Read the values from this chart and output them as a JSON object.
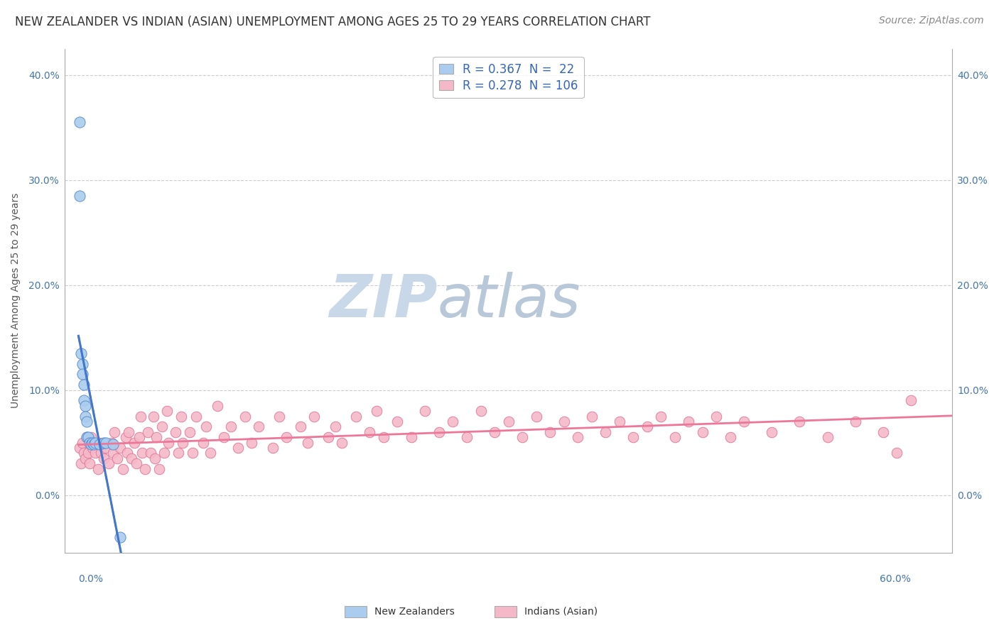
{
  "title": "NEW ZEALANDER VS INDIAN (ASIAN) UNEMPLOYMENT AMONG AGES 25 TO 29 YEARS CORRELATION CHART",
  "source": "Source: ZipAtlas.com",
  "ylabel": "Unemployment Among Ages 25 to 29 years",
  "yticks": [
    "0.0%",
    "10.0%",
    "20.0%",
    "30.0%",
    "40.0%"
  ],
  "ytick_vals": [
    0.0,
    0.1,
    0.2,
    0.3,
    0.4
  ],
  "xlim": [
    -0.01,
    0.63
  ],
  "ylim": [
    -0.055,
    0.425
  ],
  "legend_nz": "R = 0.367  N =  22",
  "legend_ind": "R = 0.278  N = 106",
  "legend_label_nz": "New Zealanders",
  "legend_label_ind": "Indians (Asian)",
  "nz_color": "#aaccee",
  "nz_edge_color": "#5588cc",
  "ind_color": "#f5b8c8",
  "ind_edge_color": "#dd7799",
  "nz_line_color": "#4477cc",
  "ind_line_color": "#ee7799",
  "watermark_zip": "ZIP",
  "watermark_atlas": "atlas",
  "watermark_color_zip": "#c8d8e8",
  "watermark_color_atlas": "#b8c8d8",
  "title_fontsize": 12,
  "source_fontsize": 10,
  "axis_label_fontsize": 10,
  "tick_fontsize": 10,
  "legend_fontsize": 12,
  "watermark_fontsize": 60,
  "R_nz": 0.367,
  "N_nz": 22,
  "R_ind": 0.278,
  "N_ind": 106,
  "nz_x": [
    0.001,
    0.001,
    0.002,
    0.003,
    0.003,
    0.004,
    0.004,
    0.005,
    0.005,
    0.006,
    0.006,
    0.007,
    0.008,
    0.009,
    0.01,
    0.011,
    0.012,
    0.015,
    0.018,
    0.02,
    0.025,
    0.03
  ],
  "nz_y": [
    0.355,
    0.285,
    0.135,
    0.125,
    0.115,
    0.105,
    0.09,
    0.085,
    0.075,
    0.07,
    0.055,
    0.055,
    0.05,
    0.048,
    0.05,
    0.048,
    0.05,
    0.048,
    0.05,
    0.05,
    0.048,
    -0.04
  ],
  "ind_x": [
    0.001,
    0.002,
    0.003,
    0.004,
    0.005,
    0.006,
    0.007,
    0.008,
    0.009,
    0.01,
    0.012,
    0.014,
    0.015,
    0.016,
    0.018,
    0.02,
    0.022,
    0.024,
    0.025,
    0.026,
    0.028,
    0.03,
    0.032,
    0.034,
    0.035,
    0.036,
    0.038,
    0.04,
    0.042,
    0.044,
    0.045,
    0.046,
    0.048,
    0.05,
    0.052,
    0.054,
    0.055,
    0.056,
    0.058,
    0.06,
    0.062,
    0.064,
    0.065,
    0.07,
    0.072,
    0.074,
    0.075,
    0.08,
    0.082,
    0.085,
    0.09,
    0.092,
    0.095,
    0.1,
    0.105,
    0.11,
    0.115,
    0.12,
    0.125,
    0.13,
    0.14,
    0.145,
    0.15,
    0.16,
    0.165,
    0.17,
    0.18,
    0.185,
    0.19,
    0.2,
    0.21,
    0.215,
    0.22,
    0.23,
    0.24,
    0.25,
    0.26,
    0.27,
    0.28,
    0.29,
    0.3,
    0.31,
    0.32,
    0.33,
    0.34,
    0.35,
    0.36,
    0.37,
    0.38,
    0.39,
    0.4,
    0.41,
    0.42,
    0.43,
    0.44,
    0.45,
    0.46,
    0.47,
    0.48,
    0.5,
    0.52,
    0.54,
    0.56,
    0.58,
    0.59,
    0.6
  ],
  "ind_y": [
    0.045,
    0.03,
    0.05,
    0.04,
    0.035,
    0.055,
    0.04,
    0.03,
    0.055,
    0.045,
    0.04,
    0.025,
    0.05,
    0.04,
    0.035,
    0.045,
    0.03,
    0.05,
    0.04,
    0.06,
    0.035,
    0.045,
    0.025,
    0.055,
    0.04,
    0.06,
    0.035,
    0.05,
    0.03,
    0.055,
    0.075,
    0.04,
    0.025,
    0.06,
    0.04,
    0.075,
    0.035,
    0.055,
    0.025,
    0.065,
    0.04,
    0.08,
    0.05,
    0.06,
    0.04,
    0.075,
    0.05,
    0.06,
    0.04,
    0.075,
    0.05,
    0.065,
    0.04,
    0.085,
    0.055,
    0.065,
    0.045,
    0.075,
    0.05,
    0.065,
    0.045,
    0.075,
    0.055,
    0.065,
    0.05,
    0.075,
    0.055,
    0.065,
    0.05,
    0.075,
    0.06,
    0.08,
    0.055,
    0.07,
    0.055,
    0.08,
    0.06,
    0.07,
    0.055,
    0.08,
    0.06,
    0.07,
    0.055,
    0.075,
    0.06,
    0.07,
    0.055,
    0.075,
    0.06,
    0.07,
    0.055,
    0.065,
    0.075,
    0.055,
    0.07,
    0.06,
    0.075,
    0.055,
    0.07,
    0.06,
    0.07,
    0.055,
    0.07,
    0.06,
    0.04,
    0.09
  ]
}
